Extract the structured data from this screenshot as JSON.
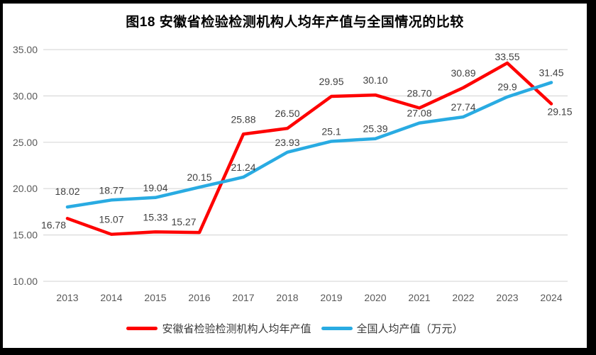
{
  "chart": {
    "title": "图18 安徽省检验检测机构人均年产值与全国情况的比较"
  },
  "chart_data": {
    "type": "line",
    "title": "图18 安徽省检验检测机构人均年产值与全国情况的比较",
    "categories": [
      "2013",
      "2014",
      "2015",
      "2016",
      "2017",
      "2018",
      "2019",
      "2020",
      "2021",
      "2022",
      "2023",
      "2024"
    ],
    "series": [
      {
        "name": "安徽省检验检测机构人均年产值",
        "color": "#FE0000",
        "values": [
          16.78,
          15.07,
          15.33,
          15.27,
          25.88,
          26.5,
          29.95,
          30.1,
          28.7,
          30.89,
          33.55,
          29.15
        ],
        "labels": [
          "16.78",
          "15.07",
          "15.33",
          "15.27",
          "25.88",
          "26.50",
          "29.95",
          "30.10",
          "28.70",
          "30.89",
          "33.55",
          "29.15"
        ]
      },
      {
        "name": "全国人均产值（万元）",
        "color": "#29ABE2",
        "values": [
          18.02,
          18.77,
          19.04,
          20.15,
          21.24,
          23.93,
          25.1,
          25.39,
          27.08,
          27.74,
          29.9,
          31.45
        ],
        "labels": [
          "18.02",
          "18.77",
          "19.04",
          "20.15",
          "21.24",
          "23.93",
          "25.1",
          "25.39",
          "27.08",
          "27.74",
          "29.9",
          "31.45"
        ]
      }
    ],
    "xlabel": "",
    "ylabel": "",
    "ylim": [
      10,
      35
    ],
    "y_ticks": [
      "35.00",
      "30.00",
      "25.00",
      "20.00",
      "15.00",
      "10.00"
    ],
    "grid": "horizontal",
    "gridline_color": "#D9D9D9",
    "label_color": "#404040",
    "tick_color": "#595959",
    "legend_position": "bottom"
  }
}
